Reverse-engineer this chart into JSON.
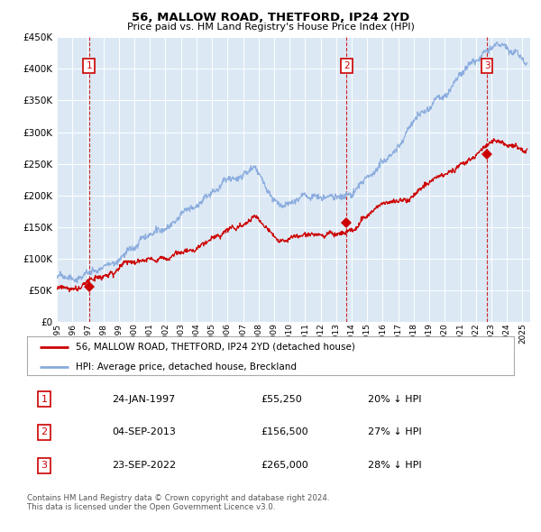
{
  "title": "56, MALLOW ROAD, THETFORD, IP24 2YD",
  "subtitle": "Price paid vs. HM Land Registry's House Price Index (HPI)",
  "bg_color": "#dce9f5",
  "transactions": [
    {
      "date": 1997.07,
      "price": 55250,
      "label": "1"
    },
    {
      "date": 2013.67,
      "price": 156500,
      "label": "2"
    },
    {
      "date": 2022.72,
      "price": 265000,
      "label": "3"
    }
  ],
  "legend_property": "56, MALLOW ROAD, THETFORD, IP24 2YD (detached house)",
  "legend_hpi": "HPI: Average price, detached house, Breckland",
  "table_rows": [
    {
      "num": "1",
      "date": "24-JAN-1997",
      "price": "£55,250",
      "hpi": "20% ↓ HPI"
    },
    {
      "num": "2",
      "date": "04-SEP-2013",
      "price": "£156,500",
      "hpi": "27% ↓ HPI"
    },
    {
      "num": "3",
      "date": "23-SEP-2022",
      "price": "£265,000",
      "hpi": "28% ↓ HPI"
    }
  ],
  "footer": "Contains HM Land Registry data © Crown copyright and database right 2024.\nThis data is licensed under the Open Government Licence v3.0.",
  "ylim": [
    0,
    450000
  ],
  "yticks": [
    0,
    50000,
    100000,
    150000,
    200000,
    250000,
    300000,
    350000,
    400000,
    450000
  ],
  "xlim_start": 1995.0,
  "xlim_end": 2025.5,
  "property_color": "#cc0000",
  "hpi_color": "#88aadd",
  "vline_color": "#cc0000",
  "grid_color": "#ffffff",
  "annotation_box_color": "#cc0000"
}
